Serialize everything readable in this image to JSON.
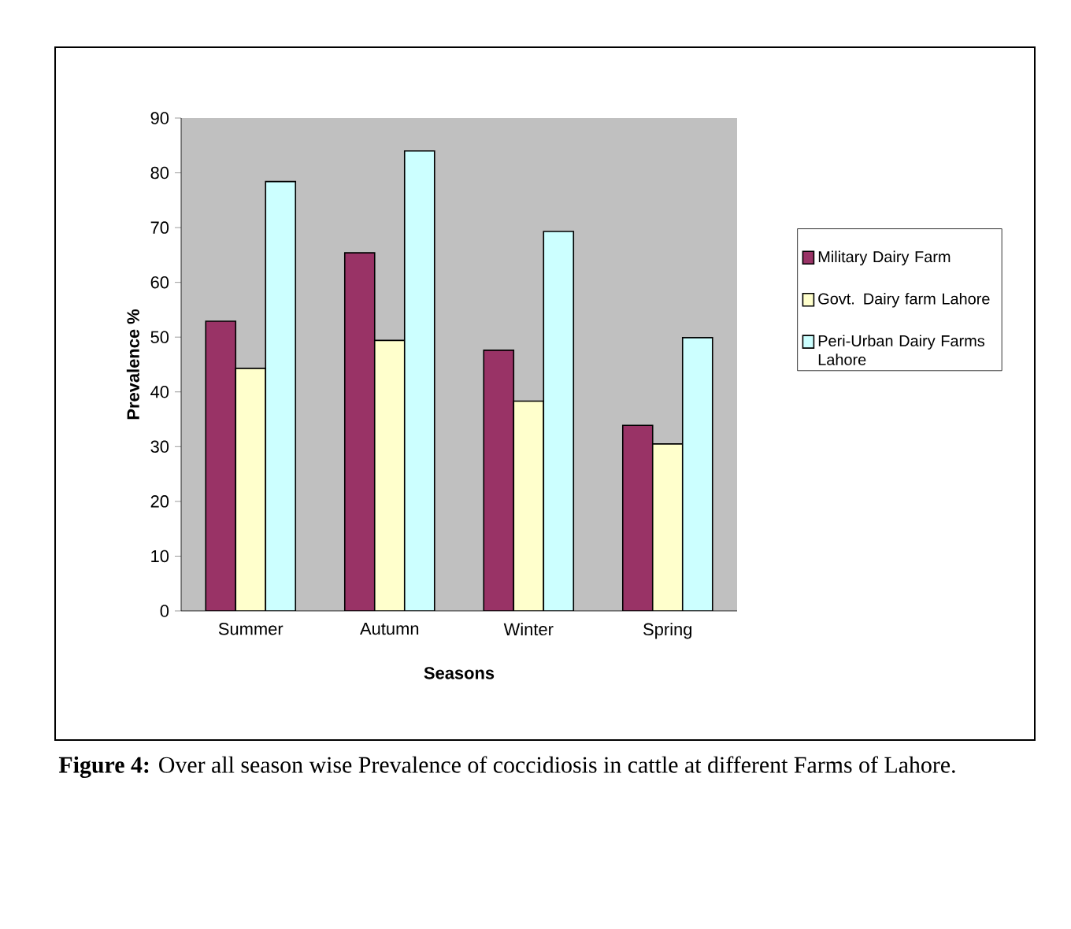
{
  "chart_data": {
    "type": "bar",
    "xlabel": "Seasons",
    "ylabel": "Prevalence %",
    "categories": [
      "Summer",
      "Autumn",
      "Winter",
      "Spring"
    ],
    "series": [
      {
        "name": "Military Dairy Farm",
        "color": "#993366",
        "values": [
          52.9,
          65.4,
          47.6,
          33.9
        ]
      },
      {
        "name": "Govt. Dairy farm Lahore",
        "color": "#ffffcc",
        "values": [
          44.3,
          49.4,
          38.3,
          30.5
        ]
      },
      {
        "name": "Peri-Urban Dairy Farms Lahore",
        "color": "#ccffff",
        "values": [
          78.4,
          84.0,
          69.3,
          49.9
        ]
      }
    ],
    "ylim": [
      0,
      90
    ],
    "yticks": [
      0,
      10,
      20,
      30,
      40,
      50,
      60,
      70,
      80,
      90
    ],
    "grid": false,
    "legend": "right",
    "annotations": [
      "**Figure 4:** Over all season wise Prevalence of coccidiosis in cattle at different Farms of Lahore."
    ]
  }
}
